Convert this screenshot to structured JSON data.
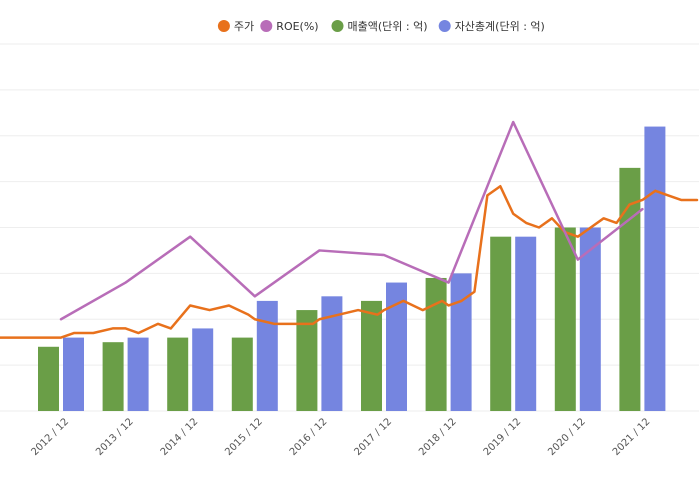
{
  "chart_data": {
    "type": "bar",
    "categories": [
      "2012 / 12",
      "2013 / 12",
      "2014 / 12",
      "2015 / 12",
      "2016 / 12",
      "2017 / 12",
      "2018 / 12",
      "2019 / 12",
      "2020 / 12",
      "2021 / 12"
    ],
    "legend_position": "top-center",
    "grid": true,
    "series": [
      {
        "name": "주가",
        "kind": "line",
        "color": "#E8711C",
        "x": [
          2012.0,
          2012.2,
          2012.5,
          2012.8,
          2013.0,
          2013.2,
          2013.5,
          2013.7,
          2014.0,
          2014.3,
          2014.6,
          2014.9,
          2015.0,
          2015.3,
          2015.6,
          2015.9,
          2016.0,
          2016.3,
          2016.6,
          2016.9,
          2017.0,
          2017.3,
          2017.6,
          2017.9,
          2018.0,
          2018.2,
          2018.4,
          2018.6,
          2018.8,
          2019.0,
          2019.2,
          2019.4,
          2019.6,
          2019.8,
          2020.0,
          2020.2,
          2020.4,
          2020.6,
          2020.8,
          2021.0,
          2021.2,
          2021.4,
          2021.6,
          2021.8
        ],
        "values": [
          16,
          17,
          17,
          18,
          18,
          17,
          19,
          18,
          23,
          22,
          23,
          21,
          20,
          19,
          19,
          19,
          20,
          21,
          22,
          21,
          22,
          24,
          22,
          24,
          23,
          24,
          26,
          47,
          49,
          43,
          41,
          40,
          42,
          39,
          38,
          40,
          42,
          41,
          45,
          46,
          48,
          47,
          46,
          46
        ]
      },
      {
        "name": "ROE(%)",
        "kind": "line",
        "color": "#B86DB8",
        "values": [
          20,
          28,
          38,
          25,
          35,
          34,
          28,
          63,
          33,
          44
        ]
      },
      {
        "name": "매출액(단위 : 억)",
        "kind": "bar",
        "color": "#6A9E47",
        "values": [
          14,
          15,
          16,
          16,
          22,
          24,
          29,
          38,
          40,
          53
        ]
      },
      {
        "name": "자산총계(단위 : 억)",
        "kind": "bar",
        "color": "#7585E0",
        "values": [
          16,
          16,
          18,
          24,
          25,
          28,
          30,
          38,
          40,
          62
        ]
      }
    ],
    "ylim": [
      0,
      80
    ]
  }
}
